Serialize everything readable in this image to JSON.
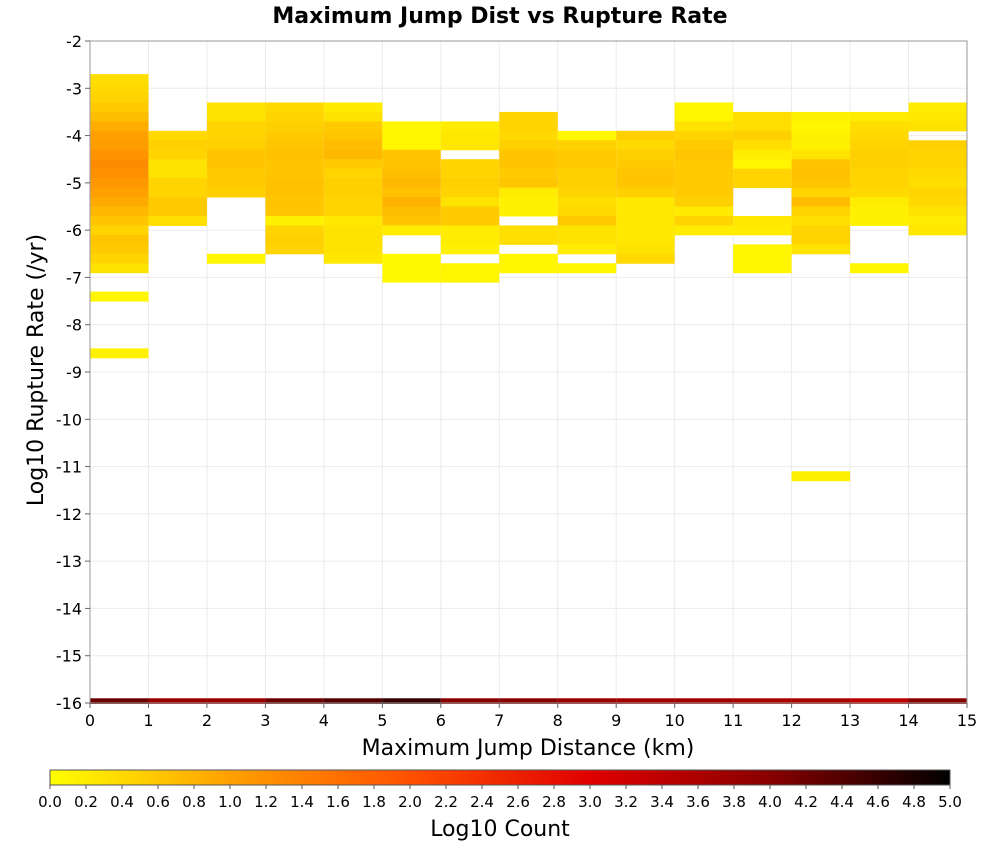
{
  "chart_data": {
    "type": "heatmap",
    "title": "Maximum Jump Dist vs Rupture Rate",
    "xlabel": "Maximum Jump Distance (km)",
    "ylabel": "Log10 Rupture Rate (/yr)",
    "xlim": [
      0,
      15
    ],
    "ylim": [
      -16,
      -2
    ],
    "x_ticks": [
      "0",
      "1",
      "2",
      "3",
      "4",
      "5",
      "6",
      "7",
      "8",
      "9",
      "10",
      "11",
      "12",
      "13",
      "14",
      "15"
    ],
    "y_ticks": [
      "-2",
      "-3",
      "-4",
      "-5",
      "-6",
      "-7",
      "-8",
      "-9",
      "-10",
      "-11",
      "-12",
      "-13",
      "-14",
      "-15",
      "-16"
    ],
    "grid": true,
    "bin_x": 1,
    "bin_y": 0.2,
    "colorbar": {
      "label": "Log10 Count",
      "range": [
        0,
        5
      ],
      "ticks": [
        "0.0",
        "0.2",
        "0.4",
        "0.6",
        "0.8",
        "1.0",
        "1.2",
        "1.4",
        "1.6",
        "1.8",
        "2.0",
        "2.2",
        "2.4",
        "2.6",
        "2.8",
        "3.0",
        "3.2",
        "3.4",
        "3.6",
        "3.8",
        "4.0",
        "4.2",
        "4.4",
        "4.6",
        "4.8",
        "5.0"
      ],
      "colors": [
        "#ffff00",
        "#ffa000",
        "#ff5000",
        "#e00000",
        "#880000",
        "#000000"
      ]
    },
    "cells": [
      {
        "x": 0,
        "y": -2.8,
        "v": 0.35
      },
      {
        "x": 0,
        "y": -3.0,
        "v": 0.4
      },
      {
        "x": 0,
        "y": -3.2,
        "v": 0.45
      },
      {
        "x": 0,
        "y": -3.4,
        "v": 0.55
      },
      {
        "x": 0,
        "y": -3.6,
        "v": 0.7
      },
      {
        "x": 0,
        "y": -3.8,
        "v": 0.85
      },
      {
        "x": 0,
        "y": -4.0,
        "v": 1.0
      },
      {
        "x": 0,
        "y": -4.2,
        "v": 1.05
      },
      {
        "x": 0,
        "y": -4.4,
        "v": 1.15
      },
      {
        "x": 0,
        "y": -4.6,
        "v": 1.25
      },
      {
        "x": 0,
        "y": -4.8,
        "v": 1.2
      },
      {
        "x": 0,
        "y": -5.0,
        "v": 1.1
      },
      {
        "x": 0,
        "y": -5.2,
        "v": 1.0
      },
      {
        "x": 0,
        "y": -5.4,
        "v": 0.9
      },
      {
        "x": 0,
        "y": -5.6,
        "v": 0.75
      },
      {
        "x": 0,
        "y": -5.8,
        "v": 0.6
      },
      {
        "x": 0,
        "y": -6.0,
        "v": 0.45
      },
      {
        "x": 0,
        "y": -6.2,
        "v": 0.6
      },
      {
        "x": 0,
        "y": -6.4,
        "v": 0.55
      },
      {
        "x": 0,
        "y": -6.6,
        "v": 0.45
      },
      {
        "x": 0,
        "y": -6.8,
        "v": 0.3
      },
      {
        "x": 0,
        "y": -7.4,
        "v": 0.1
      },
      {
        "x": 0,
        "y": -8.6,
        "v": 0.15
      },
      {
        "x": 1,
        "y": -4.0,
        "v": 0.4
      },
      {
        "x": 1,
        "y": -4.2,
        "v": 0.5
      },
      {
        "x": 1,
        "y": -4.4,
        "v": 0.45
      },
      {
        "x": 1,
        "y": -4.6,
        "v": 0.3
      },
      {
        "x": 1,
        "y": -4.8,
        "v": 0.3
      },
      {
        "x": 1,
        "y": -5.0,
        "v": 0.45
      },
      {
        "x": 1,
        "y": -5.2,
        "v": 0.45
      },
      {
        "x": 1,
        "y": -5.4,
        "v": 0.55
      },
      {
        "x": 1,
        "y": -5.6,
        "v": 0.55
      },
      {
        "x": 1,
        "y": -5.8,
        "v": 0.35
      },
      {
        "x": 2,
        "y": -3.4,
        "v": 0.3
      },
      {
        "x": 2,
        "y": -3.6,
        "v": 0.3
      },
      {
        "x": 2,
        "y": -3.8,
        "v": 0.45
      },
      {
        "x": 2,
        "y": -4.0,
        "v": 0.45
      },
      {
        "x": 2,
        "y": -4.2,
        "v": 0.5
      },
      {
        "x": 2,
        "y": -4.4,
        "v": 0.6
      },
      {
        "x": 2,
        "y": -4.6,
        "v": 0.6
      },
      {
        "x": 2,
        "y": -4.8,
        "v": 0.55
      },
      {
        "x": 2,
        "y": -5.0,
        "v": 0.55
      },
      {
        "x": 2,
        "y": -5.2,
        "v": 0.5
      },
      {
        "x": 2,
        "y": -6.6,
        "v": 0.1
      },
      {
        "x": 3,
        "y": -3.4,
        "v": 0.4
      },
      {
        "x": 3,
        "y": -3.6,
        "v": 0.45
      },
      {
        "x": 3,
        "y": -3.8,
        "v": 0.5
      },
      {
        "x": 3,
        "y": -4.0,
        "v": 0.55
      },
      {
        "x": 3,
        "y": -4.2,
        "v": 0.6
      },
      {
        "x": 3,
        "y": -4.4,
        "v": 0.65
      },
      {
        "x": 3,
        "y": -4.6,
        "v": 0.6
      },
      {
        "x": 3,
        "y": -4.8,
        "v": 0.6
      },
      {
        "x": 3,
        "y": -5.0,
        "v": 0.65
      },
      {
        "x": 3,
        "y": -5.2,
        "v": 0.65
      },
      {
        "x": 3,
        "y": -5.4,
        "v": 0.6
      },
      {
        "x": 3,
        "y": -5.6,
        "v": 0.6
      },
      {
        "x": 3,
        "y": -5.8,
        "v": 0.15
      },
      {
        "x": 3,
        "y": -6.0,
        "v": 0.45
      },
      {
        "x": 3,
        "y": -6.2,
        "v": 0.5
      },
      {
        "x": 3,
        "y": -6.4,
        "v": 0.45
      },
      {
        "x": 4,
        "y": -3.4,
        "v": 0.2
      },
      {
        "x": 4,
        "y": -3.6,
        "v": 0.3
      },
      {
        "x": 4,
        "y": -3.8,
        "v": 0.55
      },
      {
        "x": 4,
        "y": -4.0,
        "v": 0.6
      },
      {
        "x": 4,
        "y": -4.2,
        "v": 0.7
      },
      {
        "x": 4,
        "y": -4.4,
        "v": 0.75
      },
      {
        "x": 4,
        "y": -4.6,
        "v": 0.55
      },
      {
        "x": 4,
        "y": -4.8,
        "v": 0.45
      },
      {
        "x": 4,
        "y": -5.0,
        "v": 0.5
      },
      {
        "x": 4,
        "y": -5.2,
        "v": 0.5
      },
      {
        "x": 4,
        "y": -5.4,
        "v": 0.45
      },
      {
        "x": 4,
        "y": -5.6,
        "v": 0.45
      },
      {
        "x": 4,
        "y": -5.8,
        "v": 0.25
      },
      {
        "x": 4,
        "y": -6.0,
        "v": 0.3
      },
      {
        "x": 4,
        "y": -6.2,
        "v": 0.3
      },
      {
        "x": 4,
        "y": -6.4,
        "v": 0.3
      },
      {
        "x": 4,
        "y": -6.6,
        "v": 0.25
      },
      {
        "x": 5,
        "y": -3.8,
        "v": 0.1
      },
      {
        "x": 5,
        "y": -4.0,
        "v": 0.1
      },
      {
        "x": 5,
        "y": -4.2,
        "v": 0.1
      },
      {
        "x": 5,
        "y": -4.4,
        "v": 0.6
      },
      {
        "x": 5,
        "y": -4.6,
        "v": 0.6
      },
      {
        "x": 5,
        "y": -4.8,
        "v": 0.7
      },
      {
        "x": 5,
        "y": -5.0,
        "v": 0.75
      },
      {
        "x": 5,
        "y": -5.2,
        "v": 0.65
      },
      {
        "x": 5,
        "y": -5.4,
        "v": 0.8
      },
      {
        "x": 5,
        "y": -5.6,
        "v": 0.7
      },
      {
        "x": 5,
        "y": -5.8,
        "v": 0.6
      },
      {
        "x": 5,
        "y": -6.0,
        "v": 0.2
      },
      {
        "x": 5,
        "y": -6.6,
        "v": 0.05
      },
      {
        "x": 5,
        "y": -6.8,
        "v": 0.05
      },
      {
        "x": 5,
        "y": -7.0,
        "v": 0.05
      },
      {
        "x": 6,
        "y": -3.8,
        "v": 0.2
      },
      {
        "x": 6,
        "y": -4.0,
        "v": 0.25
      },
      {
        "x": 6,
        "y": -4.2,
        "v": 0.25
      },
      {
        "x": 6,
        "y": -4.6,
        "v": 0.45
      },
      {
        "x": 6,
        "y": -4.8,
        "v": 0.45
      },
      {
        "x": 6,
        "y": -5.0,
        "v": 0.5
      },
      {
        "x": 6,
        "y": -5.2,
        "v": 0.45
      },
      {
        "x": 6,
        "y": -5.4,
        "v": 0.3
      },
      {
        "x": 6,
        "y": -5.6,
        "v": 0.55
      },
      {
        "x": 6,
        "y": -5.8,
        "v": 0.55
      },
      {
        "x": 6,
        "y": -6.0,
        "v": 0.2
      },
      {
        "x": 6,
        "y": -6.2,
        "v": 0.2
      },
      {
        "x": 6,
        "y": -6.4,
        "v": 0.15
      },
      {
        "x": 6,
        "y": -6.8,
        "v": 0.1
      },
      {
        "x": 6,
        "y": -7.0,
        "v": 0.1
      },
      {
        "x": 7,
        "y": -3.6,
        "v": 0.45
      },
      {
        "x": 7,
        "y": -3.8,
        "v": 0.45
      },
      {
        "x": 7,
        "y": -4.0,
        "v": 0.4
      },
      {
        "x": 7,
        "y": -4.2,
        "v": 0.5
      },
      {
        "x": 7,
        "y": -4.4,
        "v": 0.6
      },
      {
        "x": 7,
        "y": -4.6,
        "v": 0.6
      },
      {
        "x": 7,
        "y": -4.8,
        "v": 0.55
      },
      {
        "x": 7,
        "y": -5.0,
        "v": 0.6
      },
      {
        "x": 7,
        "y": -5.2,
        "v": 0.2
      },
      {
        "x": 7,
        "y": -5.4,
        "v": 0.15
      },
      {
        "x": 7,
        "y": -5.6,
        "v": 0.15
      },
      {
        "x": 7,
        "y": -6.0,
        "v": 0.35
      },
      {
        "x": 7,
        "y": -6.2,
        "v": 0.35
      },
      {
        "x": 7,
        "y": -6.6,
        "v": 0.1
      },
      {
        "x": 7,
        "y": -6.8,
        "v": 0.1
      },
      {
        "x": 8,
        "y": -4.0,
        "v": 0.1
      },
      {
        "x": 8,
        "y": -4.2,
        "v": 0.5
      },
      {
        "x": 8,
        "y": -4.4,
        "v": 0.55
      },
      {
        "x": 8,
        "y": -4.6,
        "v": 0.55
      },
      {
        "x": 8,
        "y": -4.8,
        "v": 0.5
      },
      {
        "x": 8,
        "y": -5.0,
        "v": 0.5
      },
      {
        "x": 8,
        "y": -5.2,
        "v": 0.45
      },
      {
        "x": 8,
        "y": -5.4,
        "v": 0.35
      },
      {
        "x": 8,
        "y": -5.6,
        "v": 0.4
      },
      {
        "x": 8,
        "y": -5.8,
        "v": 0.55
      },
      {
        "x": 8,
        "y": -6.0,
        "v": 0.3
      },
      {
        "x": 8,
        "y": -6.2,
        "v": 0.3
      },
      {
        "x": 8,
        "y": -6.4,
        "v": 0.2
      },
      {
        "x": 8,
        "y": -6.8,
        "v": 0.1
      },
      {
        "x": 9,
        "y": -4.0,
        "v": 0.5
      },
      {
        "x": 9,
        "y": -4.2,
        "v": 0.4
      },
      {
        "x": 9,
        "y": -4.4,
        "v": 0.5
      },
      {
        "x": 9,
        "y": -4.6,
        "v": 0.55
      },
      {
        "x": 9,
        "y": -4.8,
        "v": 0.6
      },
      {
        "x": 9,
        "y": -5.0,
        "v": 0.6
      },
      {
        "x": 9,
        "y": -5.2,
        "v": 0.5
      },
      {
        "x": 9,
        "y": -5.4,
        "v": 0.25
      },
      {
        "x": 9,
        "y": -5.6,
        "v": 0.25
      },
      {
        "x": 9,
        "y": -5.8,
        "v": 0.25
      },
      {
        "x": 9,
        "y": -6.0,
        "v": 0.25
      },
      {
        "x": 9,
        "y": -6.2,
        "v": 0.25
      },
      {
        "x": 9,
        "y": -6.4,
        "v": 0.3
      },
      {
        "x": 9,
        "y": -6.6,
        "v": 0.4
      },
      {
        "x": 10,
        "y": -3.4,
        "v": 0.1
      },
      {
        "x": 10,
        "y": -3.6,
        "v": 0.1
      },
      {
        "x": 10,
        "y": -3.8,
        "v": 0.3
      },
      {
        "x": 10,
        "y": -4.0,
        "v": 0.45
      },
      {
        "x": 10,
        "y": -4.2,
        "v": 0.55
      },
      {
        "x": 10,
        "y": -4.4,
        "v": 0.6
      },
      {
        "x": 10,
        "y": -4.6,
        "v": 0.55
      },
      {
        "x": 10,
        "y": -4.8,
        "v": 0.55
      },
      {
        "x": 10,
        "y": -5.0,
        "v": 0.55
      },
      {
        "x": 10,
        "y": -5.2,
        "v": 0.55
      },
      {
        "x": 10,
        "y": -5.4,
        "v": 0.5
      },
      {
        "x": 10,
        "y": -5.6,
        "v": 0.2
      },
      {
        "x": 10,
        "y": -5.8,
        "v": 0.45
      },
      {
        "x": 10,
        "y": -6.0,
        "v": 0.2
      },
      {
        "x": 11,
        "y": -3.6,
        "v": 0.35
      },
      {
        "x": 11,
        "y": -3.8,
        "v": 0.35
      },
      {
        "x": 11,
        "y": -4.0,
        "v": 0.5
      },
      {
        "x": 11,
        "y": -4.2,
        "v": 0.35
      },
      {
        "x": 11,
        "y": -4.4,
        "v": 0.2
      },
      {
        "x": 11,
        "y": -4.6,
        "v": 0.1
      },
      {
        "x": 11,
        "y": -4.8,
        "v": 0.45
      },
      {
        "x": 11,
        "y": -5.0,
        "v": 0.45
      },
      {
        "x": 11,
        "y": -5.8,
        "v": 0.25
      },
      {
        "x": 11,
        "y": -6.0,
        "v": 0.2
      },
      {
        "x": 11,
        "y": -6.4,
        "v": 0.1
      },
      {
        "x": 11,
        "y": -6.6,
        "v": 0.1
      },
      {
        "x": 11,
        "y": -6.8,
        "v": 0.1
      },
      {
        "x": 12,
        "y": -3.6,
        "v": 0.15
      },
      {
        "x": 12,
        "y": -3.8,
        "v": 0.1
      },
      {
        "x": 12,
        "y": -4.0,
        "v": 0.15
      },
      {
        "x": 12,
        "y": -4.2,
        "v": 0.15
      },
      {
        "x": 12,
        "y": -4.4,
        "v": 0.3
      },
      {
        "x": 12,
        "y": -4.6,
        "v": 0.6
      },
      {
        "x": 12,
        "y": -4.8,
        "v": 0.65
      },
      {
        "x": 12,
        "y": -5.0,
        "v": 0.6
      },
      {
        "x": 12,
        "y": -5.2,
        "v": 0.45
      },
      {
        "x": 12,
        "y": -5.4,
        "v": 0.7
      },
      {
        "x": 12,
        "y": -5.6,
        "v": 0.45
      },
      {
        "x": 12,
        "y": -5.8,
        "v": 0.35
      },
      {
        "x": 12,
        "y": -6.0,
        "v": 0.45
      },
      {
        "x": 12,
        "y": -6.2,
        "v": 0.45
      },
      {
        "x": 12,
        "y": -6.4,
        "v": 0.3
      },
      {
        "x": 12,
        "y": -11.2,
        "v": 0.15
      },
      {
        "x": 13,
        "y": -3.6,
        "v": 0.2
      },
      {
        "x": 13,
        "y": -3.8,
        "v": 0.35
      },
      {
        "x": 13,
        "y": -4.0,
        "v": 0.4
      },
      {
        "x": 13,
        "y": -4.2,
        "v": 0.45
      },
      {
        "x": 13,
        "y": -4.4,
        "v": 0.5
      },
      {
        "x": 13,
        "y": -4.6,
        "v": 0.5
      },
      {
        "x": 13,
        "y": -4.8,
        "v": 0.45
      },
      {
        "x": 13,
        "y": -5.0,
        "v": 0.45
      },
      {
        "x": 13,
        "y": -5.2,
        "v": 0.4
      },
      {
        "x": 13,
        "y": -5.4,
        "v": 0.2
      },
      {
        "x": 13,
        "y": -5.6,
        "v": 0.15
      },
      {
        "x": 13,
        "y": -5.8,
        "v": 0.15
      },
      {
        "x": 13,
        "y": -6.8,
        "v": 0.1
      },
      {
        "x": 14,
        "y": -3.4,
        "v": 0.2
      },
      {
        "x": 14,
        "y": -3.6,
        "v": 0.25
      },
      {
        "x": 14,
        "y": -3.8,
        "v": 0.3
      },
      {
        "x": 14,
        "y": -4.2,
        "v": 0.5
      },
      {
        "x": 14,
        "y": -4.4,
        "v": 0.45
      },
      {
        "x": 14,
        "y": -4.6,
        "v": 0.45
      },
      {
        "x": 14,
        "y": -4.8,
        "v": 0.4
      },
      {
        "x": 14,
        "y": -5.0,
        "v": 0.35
      },
      {
        "x": 14,
        "y": -5.2,
        "v": 0.45
      },
      {
        "x": 14,
        "y": -5.4,
        "v": 0.4
      },
      {
        "x": 14,
        "y": -5.6,
        "v": 0.3
      },
      {
        "x": 14,
        "y": -5.8,
        "v": 0.2
      },
      {
        "x": 14,
        "y": -6.0,
        "v": 0.25
      }
    ],
    "bottom_row": {
      "y": -16.0,
      "values": [
        4.2,
        3.8,
        3.8,
        4.2,
        4.4,
        4.6,
        4.0,
        4.0,
        3.8,
        3.7,
        3.7,
        3.6,
        3.6,
        3.4,
        4.0
      ]
    }
  }
}
